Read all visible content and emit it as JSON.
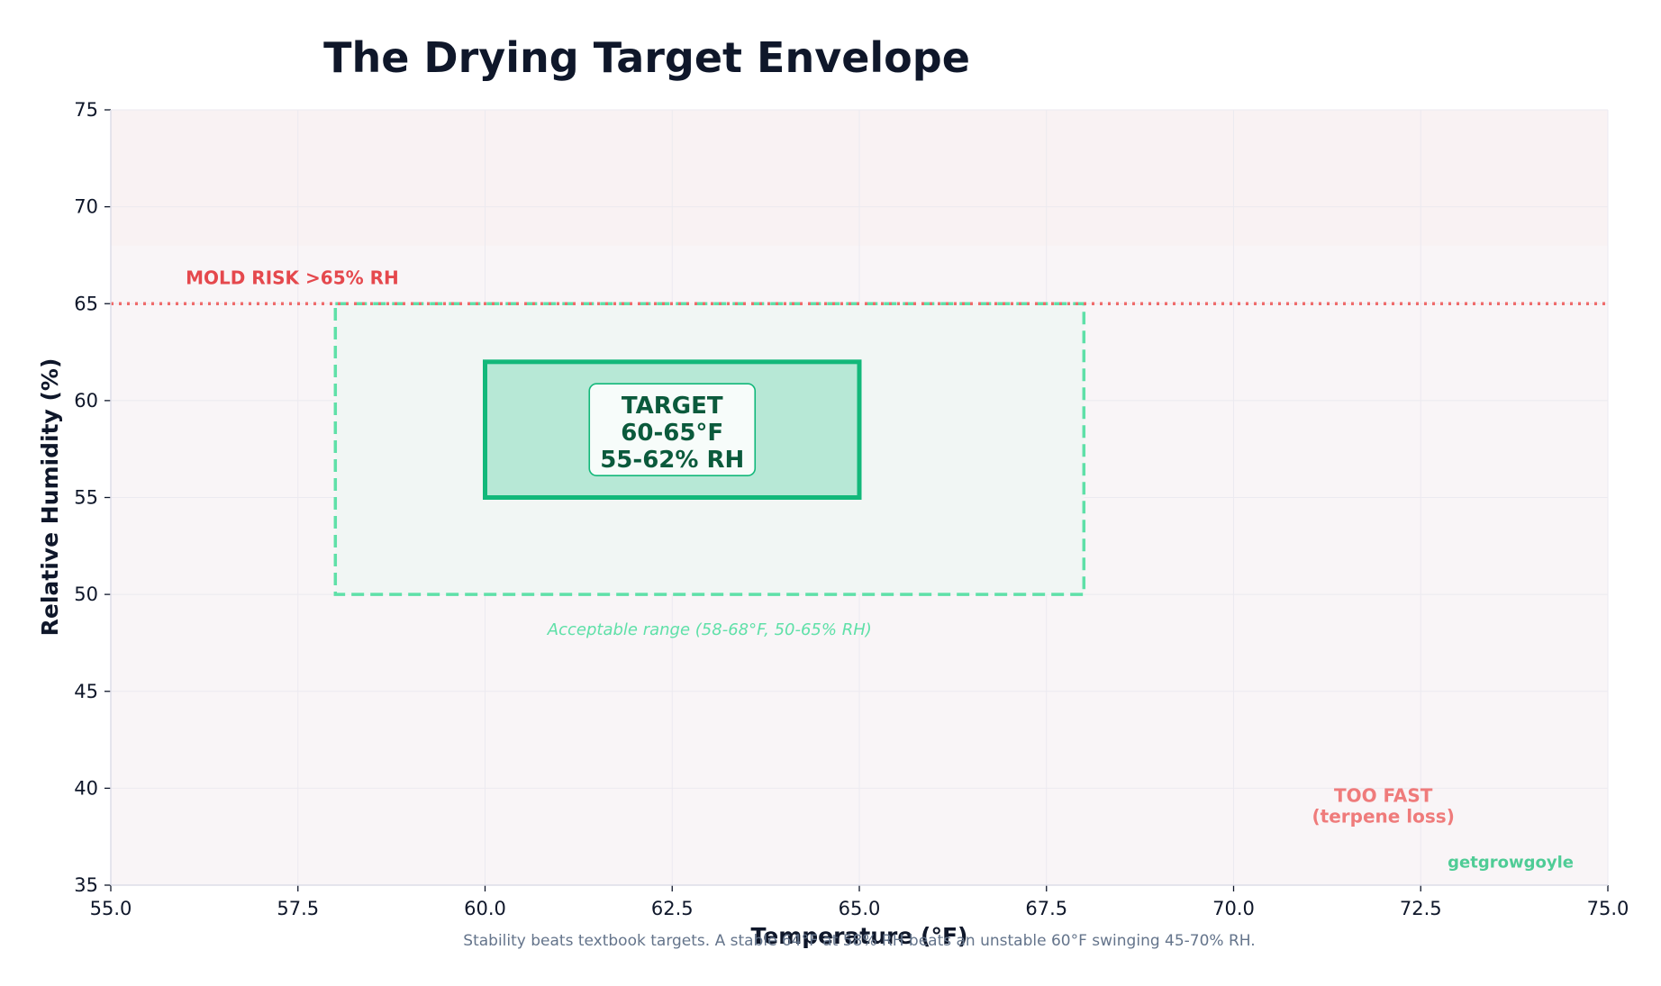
{
  "chart_data": {
    "type": "area",
    "title": "The Drying Target Envelope",
    "xlabel": "Temperature (°F)",
    "ylabel": "Relative Humidity (%)",
    "xlim": [
      55.0,
      75.0
    ],
    "ylim": [
      35,
      75
    ],
    "xticks": [
      "55.0",
      "57.5",
      "60.0",
      "62.5",
      "65.0",
      "67.5",
      "70.0",
      "72.5",
      "75.0"
    ],
    "yticks": [
      "35",
      "40",
      "45",
      "50",
      "55",
      "60",
      "65",
      "70",
      "75"
    ],
    "grid": true,
    "mold_threshold_rh": 65,
    "mold_label": "MOLD RISK >65% RH",
    "acceptable_range": {
      "x": [
        58,
        68
      ],
      "y": [
        50,
        65
      ],
      "label": "Acceptable range (58-68°F, 50-65% RH)"
    },
    "target_range": {
      "x": [
        60,
        65
      ],
      "y": [
        55,
        62
      ],
      "label_lines": [
        "TARGET",
        "60-65°F",
        "55-62% RH"
      ]
    },
    "too_fast_label_lines": [
      "TOO FAST",
      "(terpene loss)"
    ],
    "brand": "getgrowgoyle",
    "caption": "Stability beats textbook targets. A stable 64°F at 58% RH beats an unstable 60°F swinging 45-70% RH.",
    "colors": {
      "mold": "#ef6b6b",
      "acceptable": "#5fe0a8",
      "target_edge": "#12b87a",
      "target_fill": "#b7e8d6",
      "too_fast": "#ef7b7b"
    }
  }
}
